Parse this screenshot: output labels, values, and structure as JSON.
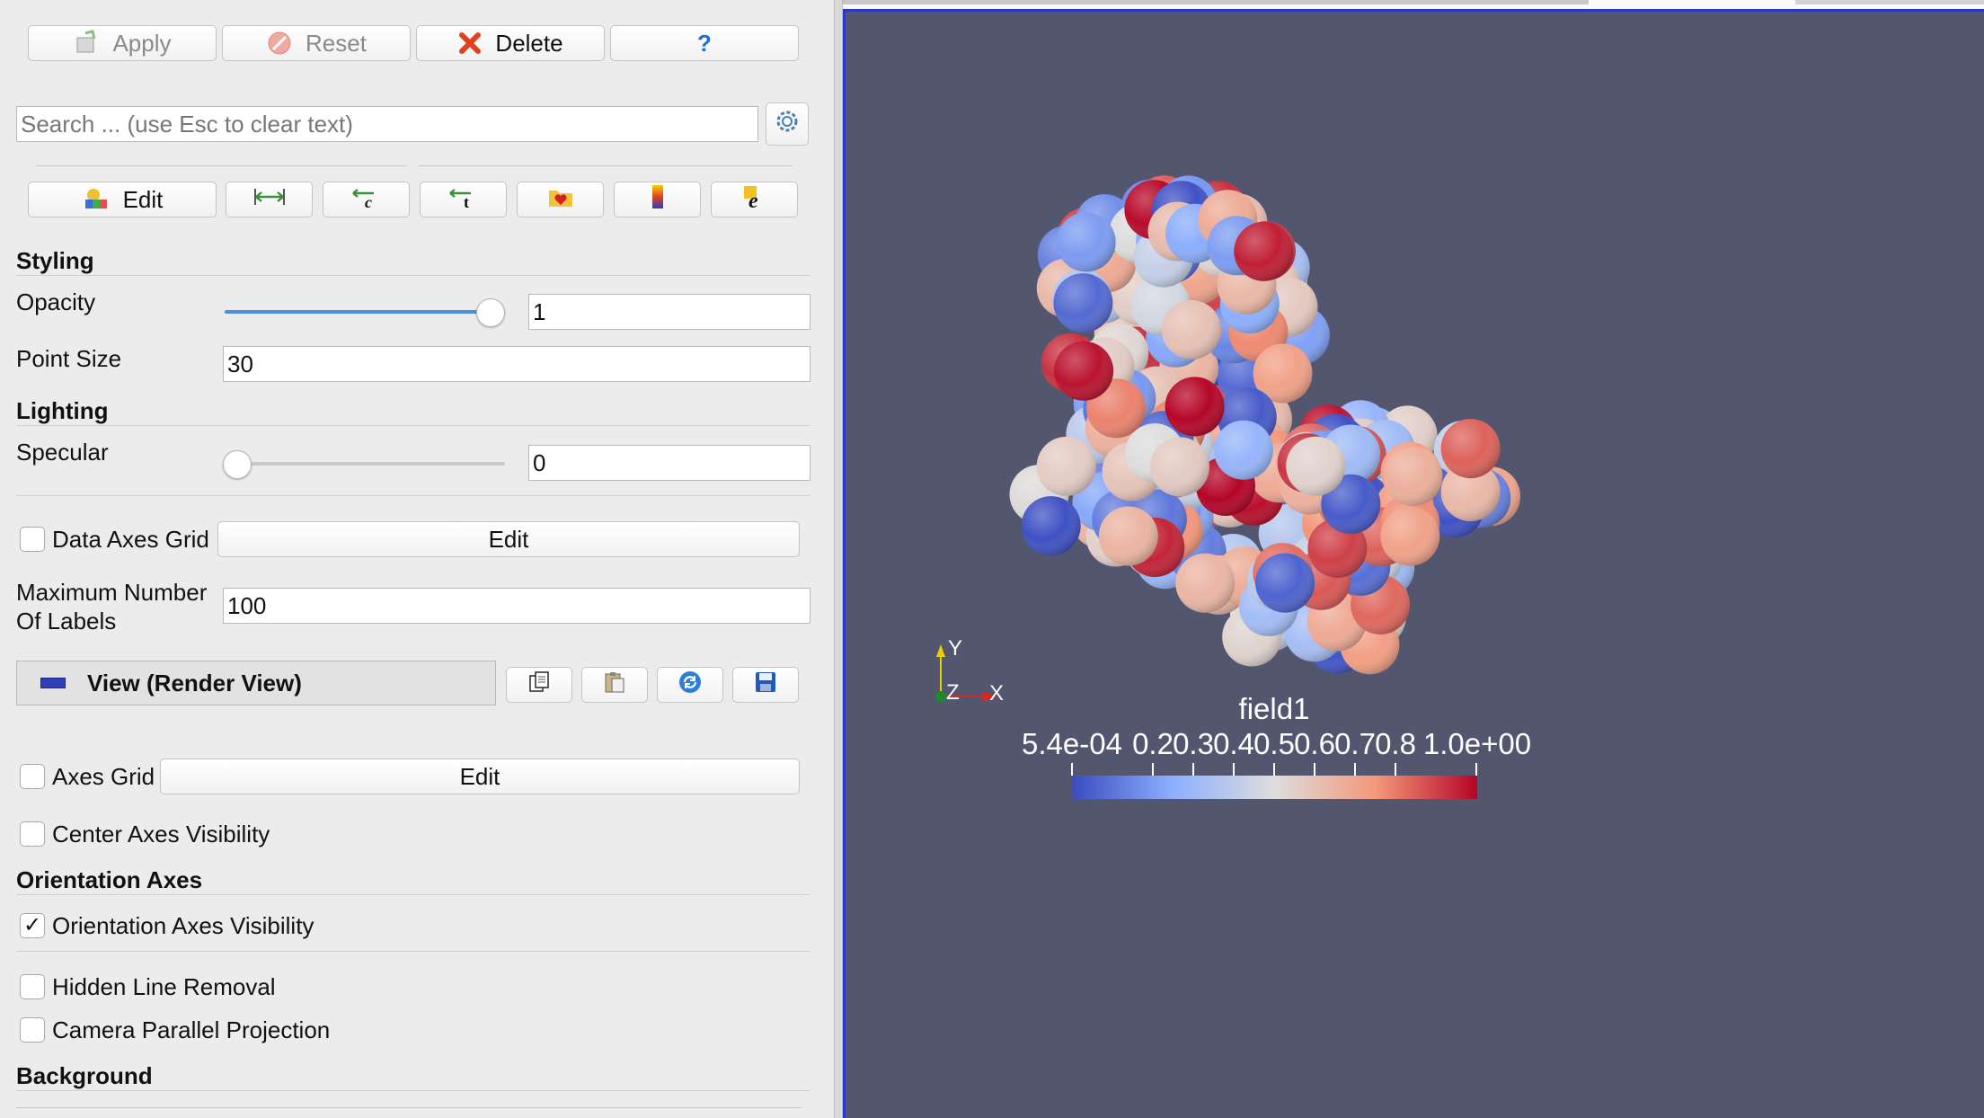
{
  "toolbar": {
    "apply_label": "Apply",
    "reset_label": "Reset",
    "delete_label": "Delete",
    "help_label": "?"
  },
  "search": {
    "placeholder": "Search ... (use Esc to clear text)"
  },
  "color_toolbar": {
    "edit_label": "Edit"
  },
  "styling": {
    "section_label": "Styling",
    "opacity_label": "Opacity",
    "opacity_value": "1",
    "opacity_level": 1.0,
    "point_size_label": "Point Size",
    "point_size_value": "30"
  },
  "lighting": {
    "section_label": "Lighting",
    "specular_label": "Specular",
    "specular_value": "0",
    "specular_level": 0.0
  },
  "data_axes_grid": {
    "label": "Data Axes Grid",
    "checked": false,
    "edit_label": "Edit"
  },
  "max_labels": {
    "label_line1": "Maximum Number",
    "label_line2": "Of Labels",
    "value": "100"
  },
  "view_section": {
    "title": "View (Render View)"
  },
  "axes_grid": {
    "label": "Axes Grid",
    "checked": false,
    "edit_label": "Edit"
  },
  "center_axes": {
    "label": "Center Axes Visibility",
    "checked": false
  },
  "orientation_axes": {
    "section_label": "Orientation Axes",
    "visibility_label": "Orientation Axes Visibility",
    "checked": true,
    "check_mark": "✓"
  },
  "hidden_line": {
    "label": "Hidden Line Removal",
    "checked": false
  },
  "camera_parallel": {
    "label": "Camera Parallel Projection",
    "checked": false
  },
  "background": {
    "section_label": "Background"
  },
  "render_view": {
    "background_color": "#52566f",
    "axes": {
      "y_label": "Y",
      "z_label": "Z",
      "x_label": "X"
    },
    "color_bar": {
      "title": "field1",
      "range_min_label": "5.4e-04",
      "range_max_label": "1.0e+00",
      "tick_labels": [
        "0.2",
        "0.3",
        "0.4",
        "0.5",
        "0.6",
        "0.7",
        "0.8"
      ],
      "colormap": [
        "#3b4cc0",
        "#8db0fe",
        "#dddddd",
        "#f4987a",
        "#b40426"
      ]
    }
  },
  "icons": {
    "apply": "apply-icon",
    "reset": "reset-icon",
    "delete": "delete-x-icon",
    "help": "help-question-icon",
    "settings": "gear-icon",
    "view": "render-view-icon",
    "copy": "copy-icon",
    "paste": "paste-icon",
    "reload": "refresh-icon",
    "save": "save-disk-icon"
  }
}
